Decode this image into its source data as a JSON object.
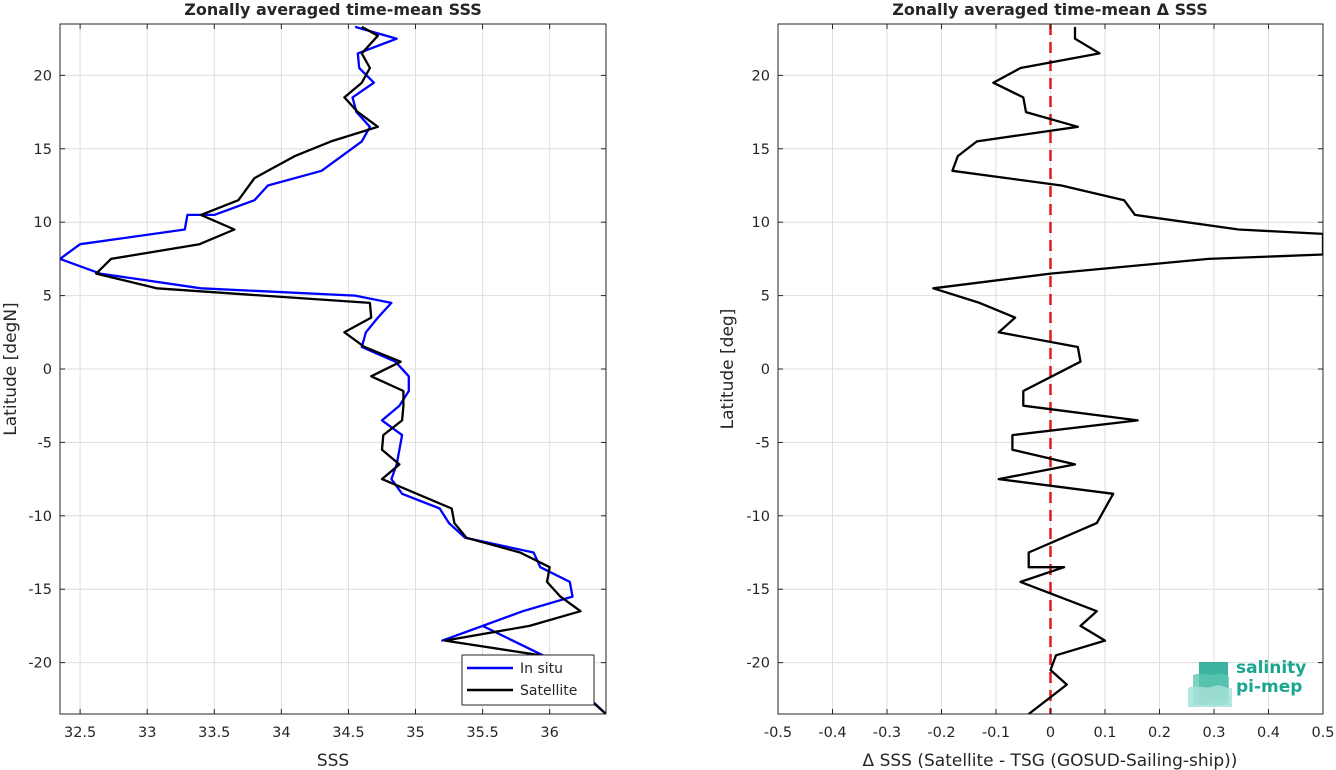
{
  "colors": {
    "insitu": "#0000ff",
    "satellite": "#000000",
    "zero_line": "#e41a1c",
    "grid": "#dedede",
    "logo": "#1aa68f"
  },
  "logo": {
    "line1": "salinity",
    "line2": "pi-mep"
  },
  "chart_data": [
    {
      "type": "line",
      "title": "Zonally averaged time-mean SSS",
      "xlabel": "SSS",
      "ylabel": "Latitude [degN]",
      "xlim": [
        32.35,
        36.42
      ],
      "ylim": [
        -23.5,
        23.5
      ],
      "xticks": [
        32.5,
        33,
        33.5,
        34,
        34.5,
        35,
        35.5,
        36
      ],
      "xtick_labels": [
        "32.5",
        "33",
        "33.5",
        "34",
        "34.5",
        "35",
        "35.5",
        "36"
      ],
      "yticks": [
        -20,
        -15,
        -10,
        -5,
        0,
        5,
        10,
        15,
        20
      ],
      "ytick_labels": [
        "-20",
        "-15",
        "-10",
        "-5",
        "0",
        "5",
        "10",
        "15",
        "20"
      ],
      "grid": true,
      "legend": {
        "position": "bottom-right",
        "entries": [
          "In situ",
          "Satellite"
        ]
      },
      "series": [
        {
          "name": "In situ",
          "color": "#0000ff",
          "x": [
            34.55,
            34.86,
            34.57,
            34.58,
            34.69,
            34.53,
            34.56,
            34.66,
            34.6,
            34.3,
            33.9,
            33.8,
            33.5,
            33.3,
            33.28,
            32.5,
            32.35,
            32.65,
            33.4,
            34.55,
            34.82,
            34.72,
            34.63,
            34.6,
            34.85,
            34.95,
            34.95,
            34.88,
            34.75,
            34.9,
            34.88,
            34.86,
            34.82,
            34.9,
            35.18,
            35.25,
            35.37,
            35.88,
            35.93,
            36.15,
            36.17,
            35.8,
            35.2,
            35.5,
            35.95,
            36.42
          ],
          "y": [
            23.3,
            22.5,
            21.5,
            20.5,
            19.5,
            18.5,
            17.5,
            16.5,
            15.5,
            13.5,
            12.5,
            11.5,
            10.5,
            10.5,
            9.5,
            8.5,
            7.5,
            6.5,
            5.5,
            5.0,
            4.5,
            3.5,
            2.5,
            1.5,
            0.5,
            -0.5,
            -1.5,
            -2.5,
            -3.5,
            -4.5,
            -5.5,
            -6.5,
            -7.5,
            -8.5,
            -9.5,
            -10.5,
            -11.5,
            -12.5,
            -13.5,
            -14.5,
            -15.5,
            -16.5,
            -18.5,
            -17.5,
            -19.5,
            -23.5
          ]
        },
        {
          "name": "Satellite",
          "color": "#000000",
          "x": [
            34.6,
            34.72,
            34.6,
            34.66,
            34.6,
            34.47,
            34.57,
            34.72,
            34.37,
            34.1,
            33.9,
            33.8,
            33.68,
            33.4,
            33.65,
            33.39,
            32.73,
            32.62,
            33.07,
            34.66,
            34.67,
            34.47,
            34.62,
            34.89,
            34.67,
            34.91,
            34.91,
            34.9,
            34.76,
            34.75,
            34.88,
            34.75,
            35.27,
            35.29,
            35.38,
            35.78,
            36.0,
            35.98,
            36.08,
            36.23,
            35.85,
            35.22,
            35.93,
            36.42
          ],
          "y": [
            23.3,
            22.7,
            21.5,
            20.5,
            19.5,
            18.5,
            17.5,
            16.5,
            15.5,
            14.5,
            13.5,
            13.0,
            11.5,
            10.5,
            9.5,
            8.5,
            7.5,
            6.5,
            5.5,
            4.5,
            3.5,
            2.5,
            1.5,
            0.5,
            -0.5,
            -1.5,
            -2.5,
            -3.5,
            -4.5,
            -5.5,
            -6.5,
            -7.5,
            -9.5,
            -10.5,
            -11.5,
            -12.5,
            -13.5,
            -14.5,
            -15.5,
            -16.5,
            -17.5,
            -18.5,
            -19.5,
            -23.5
          ]
        }
      ]
    },
    {
      "type": "line",
      "title": "Zonally averaged time-mean Δ SSS",
      "xlabel": "Δ SSS (Satellite - TSG (GOSUD-Sailing-ship))",
      "ylabel": "Latitude [deg]",
      "xlim": [
        -0.5,
        0.5
      ],
      "ylim": [
        -23.5,
        23.5
      ],
      "xticks": [
        -0.5,
        -0.4,
        -0.3,
        -0.2,
        -0.1,
        0,
        0.1,
        0.2,
        0.3,
        0.4,
        0.5
      ],
      "xtick_labels": [
        "-0.5",
        "-0.4",
        "-0.3",
        "-0.2",
        "-0.1",
        "0",
        "0.1",
        "0.2",
        "0.3",
        "0.4",
        "0.5"
      ],
      "yticks": [
        -20,
        -15,
        -10,
        -5,
        0,
        5,
        10,
        15,
        20
      ],
      "ytick_labels": [
        "-20",
        "-15",
        "-10",
        "-5",
        "0",
        "5",
        "10",
        "15",
        "20"
      ],
      "grid": true,
      "reference_line": {
        "x": 0,
        "style": "dashed",
        "color": "#e41a1c"
      },
      "series": [
        {
          "color": "#000000",
          "x": [
            0.045,
            0.045,
            0.09,
            -0.055,
            -0.105,
            -0.05,
            -0.045,
            0.05,
            -0.135,
            -0.17,
            -0.18,
            0.02,
            0.135,
            0.155,
            0.345,
            0.5,
            0.5,
            0.29,
            0.0,
            -0.215,
            -0.13,
            -0.065,
            -0.095,
            0.05,
            0.055,
            -0.05,
            -0.05,
            0.16,
            -0.07,
            -0.07,
            0.045,
            -0.095,
            0.115,
            0.085,
            -0.04,
            -0.04,
            0.025,
            -0.055,
            0.085,
            0.055,
            0.1,
            0.01,
            0.0,
            0.03,
            -0.04
          ],
          "y": [
            23.3,
            22.5,
            21.5,
            20.5,
            19.5,
            18.5,
            17.5,
            16.5,
            15.5,
            14.5,
            13.5,
            12.5,
            11.5,
            10.5,
            9.5,
            9.2,
            7.8,
            7.5,
            6.5,
            5.5,
            4.5,
            3.5,
            2.5,
            1.5,
            0.5,
            -1.5,
            -2.5,
            -3.5,
            -4.5,
            -5.5,
            -6.5,
            -7.5,
            -8.5,
            -10.5,
            -12.5,
            -13.5,
            -13.5,
            -14.5,
            -16.5,
            -17.5,
            -18.5,
            -19.5,
            -20.5,
            -21.5,
            -23.5
          ]
        }
      ]
    }
  ]
}
